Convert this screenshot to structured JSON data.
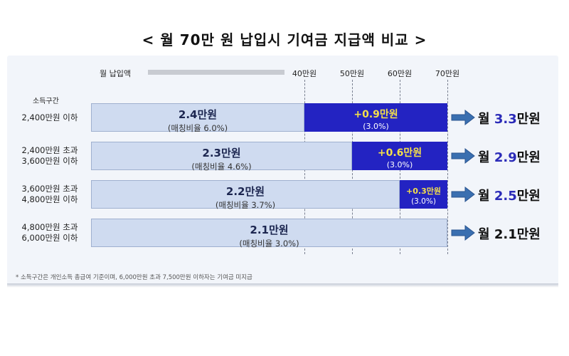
{
  "title": "< 월 70만 원 납입시 기여금 지급액 비교 >",
  "header_label": "월 납입액",
  "income_header": "소득구간",
  "footnote": "* 소득구간은 개인소득 총급여 기준이며, 6,000만원 초과 7,500만원 이하자는 기여금 미지급",
  "colors": {
    "base_fill": "#cfdbf0",
    "add_fill": "#2323c2",
    "add_text": "#f4e04a",
    "accent_number": "#2b2bb8",
    "arrow": "#3a6fb0"
  },
  "chart_data": {
    "type": "bar",
    "orientation": "horizontal",
    "stacked": true,
    "axis_ticks": [
      "40만원",
      "50만원",
      "60만원",
      "70만원"
    ],
    "tick_values": [
      40,
      50,
      60,
      70
    ],
    "categories": [
      "2,400만원 이하",
      "2,400만원 초과 3,600만원 이하",
      "3,600만원 초과 4,800만원 이하",
      "4,800만원 초과 6,000만원 이하"
    ],
    "rows": [
      {
        "label_lines": [
          "2,400만원 이하"
        ],
        "base_label": "2.4만원",
        "base_sub": "(매칭비율 6.0%)",
        "add_label": "+0.9만원",
        "add_sub": "(3.0%)",
        "split_at": 40,
        "result_prefix": "월 ",
        "result_value": "3.3",
        "result_suffix": "만원"
      },
      {
        "label_lines": [
          "2,400만원 초과",
          "3,600만원 이하"
        ],
        "base_label": "2.3만원",
        "base_sub": "(매칭비율 4.6%)",
        "add_label": "+0.6만원",
        "add_sub": "(3.0%)",
        "split_at": 50,
        "result_prefix": "월 ",
        "result_value": "2.9",
        "result_suffix": "만원"
      },
      {
        "label_lines": [
          "3,600만원 초과",
          "4,800만원 이하"
        ],
        "base_label": "2.2만원",
        "base_sub": "(매칭비율 3.7%)",
        "add_label": "+0.3만원",
        "add_sub": "(3.0%)",
        "split_at": 60,
        "result_prefix": "월 ",
        "result_value": "2.5",
        "result_suffix": "만원"
      },
      {
        "label_lines": [
          "4,800만원 초과",
          "6,000만원 이하"
        ],
        "base_label": "2.1만원",
        "base_sub": "(매칭비율 3.0%)",
        "add_label": "",
        "add_sub": "",
        "split_at": 70,
        "result_prefix": "",
        "result_value": "",
        "result_suffix": "월 2.1만원"
      }
    ],
    "base_values": [
      2.4,
      2.3,
      2.2,
      2.1
    ],
    "additional_values": [
      0.9,
      0.6,
      0.3,
      0
    ],
    "totals": [
      3.3,
      2.9,
      2.5,
      2.1
    ],
    "payment_levels": [
      40,
      50,
      60,
      70
    ],
    "unit": "만원"
  }
}
